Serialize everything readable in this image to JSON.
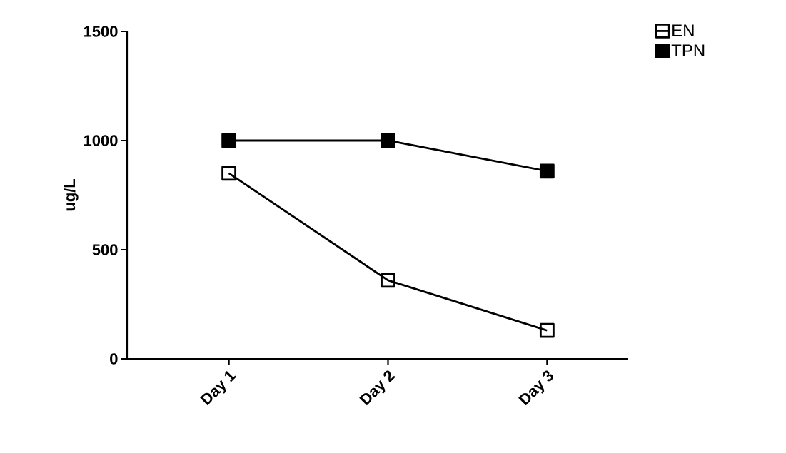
{
  "chart_data": {
    "type": "line",
    "ylabel": "ug/L",
    "categories": [
      "Day 1",
      "Day 2",
      "Day 3"
    ],
    "series": [
      {
        "name": "EN",
        "color": "#000000",
        "values": [
          850,
          360,
          130
        ]
      },
      {
        "name": "TPN",
        "color": "#000000",
        "values": [
          1000,
          1000,
          860
        ]
      }
    ],
    "ylim": [
      0,
      1500
    ],
    "yticks": [
      0,
      500,
      1000,
      1500
    ],
    "grid": false,
    "legend": "top right",
    "marker": "square",
    "line_style": "solid"
  }
}
